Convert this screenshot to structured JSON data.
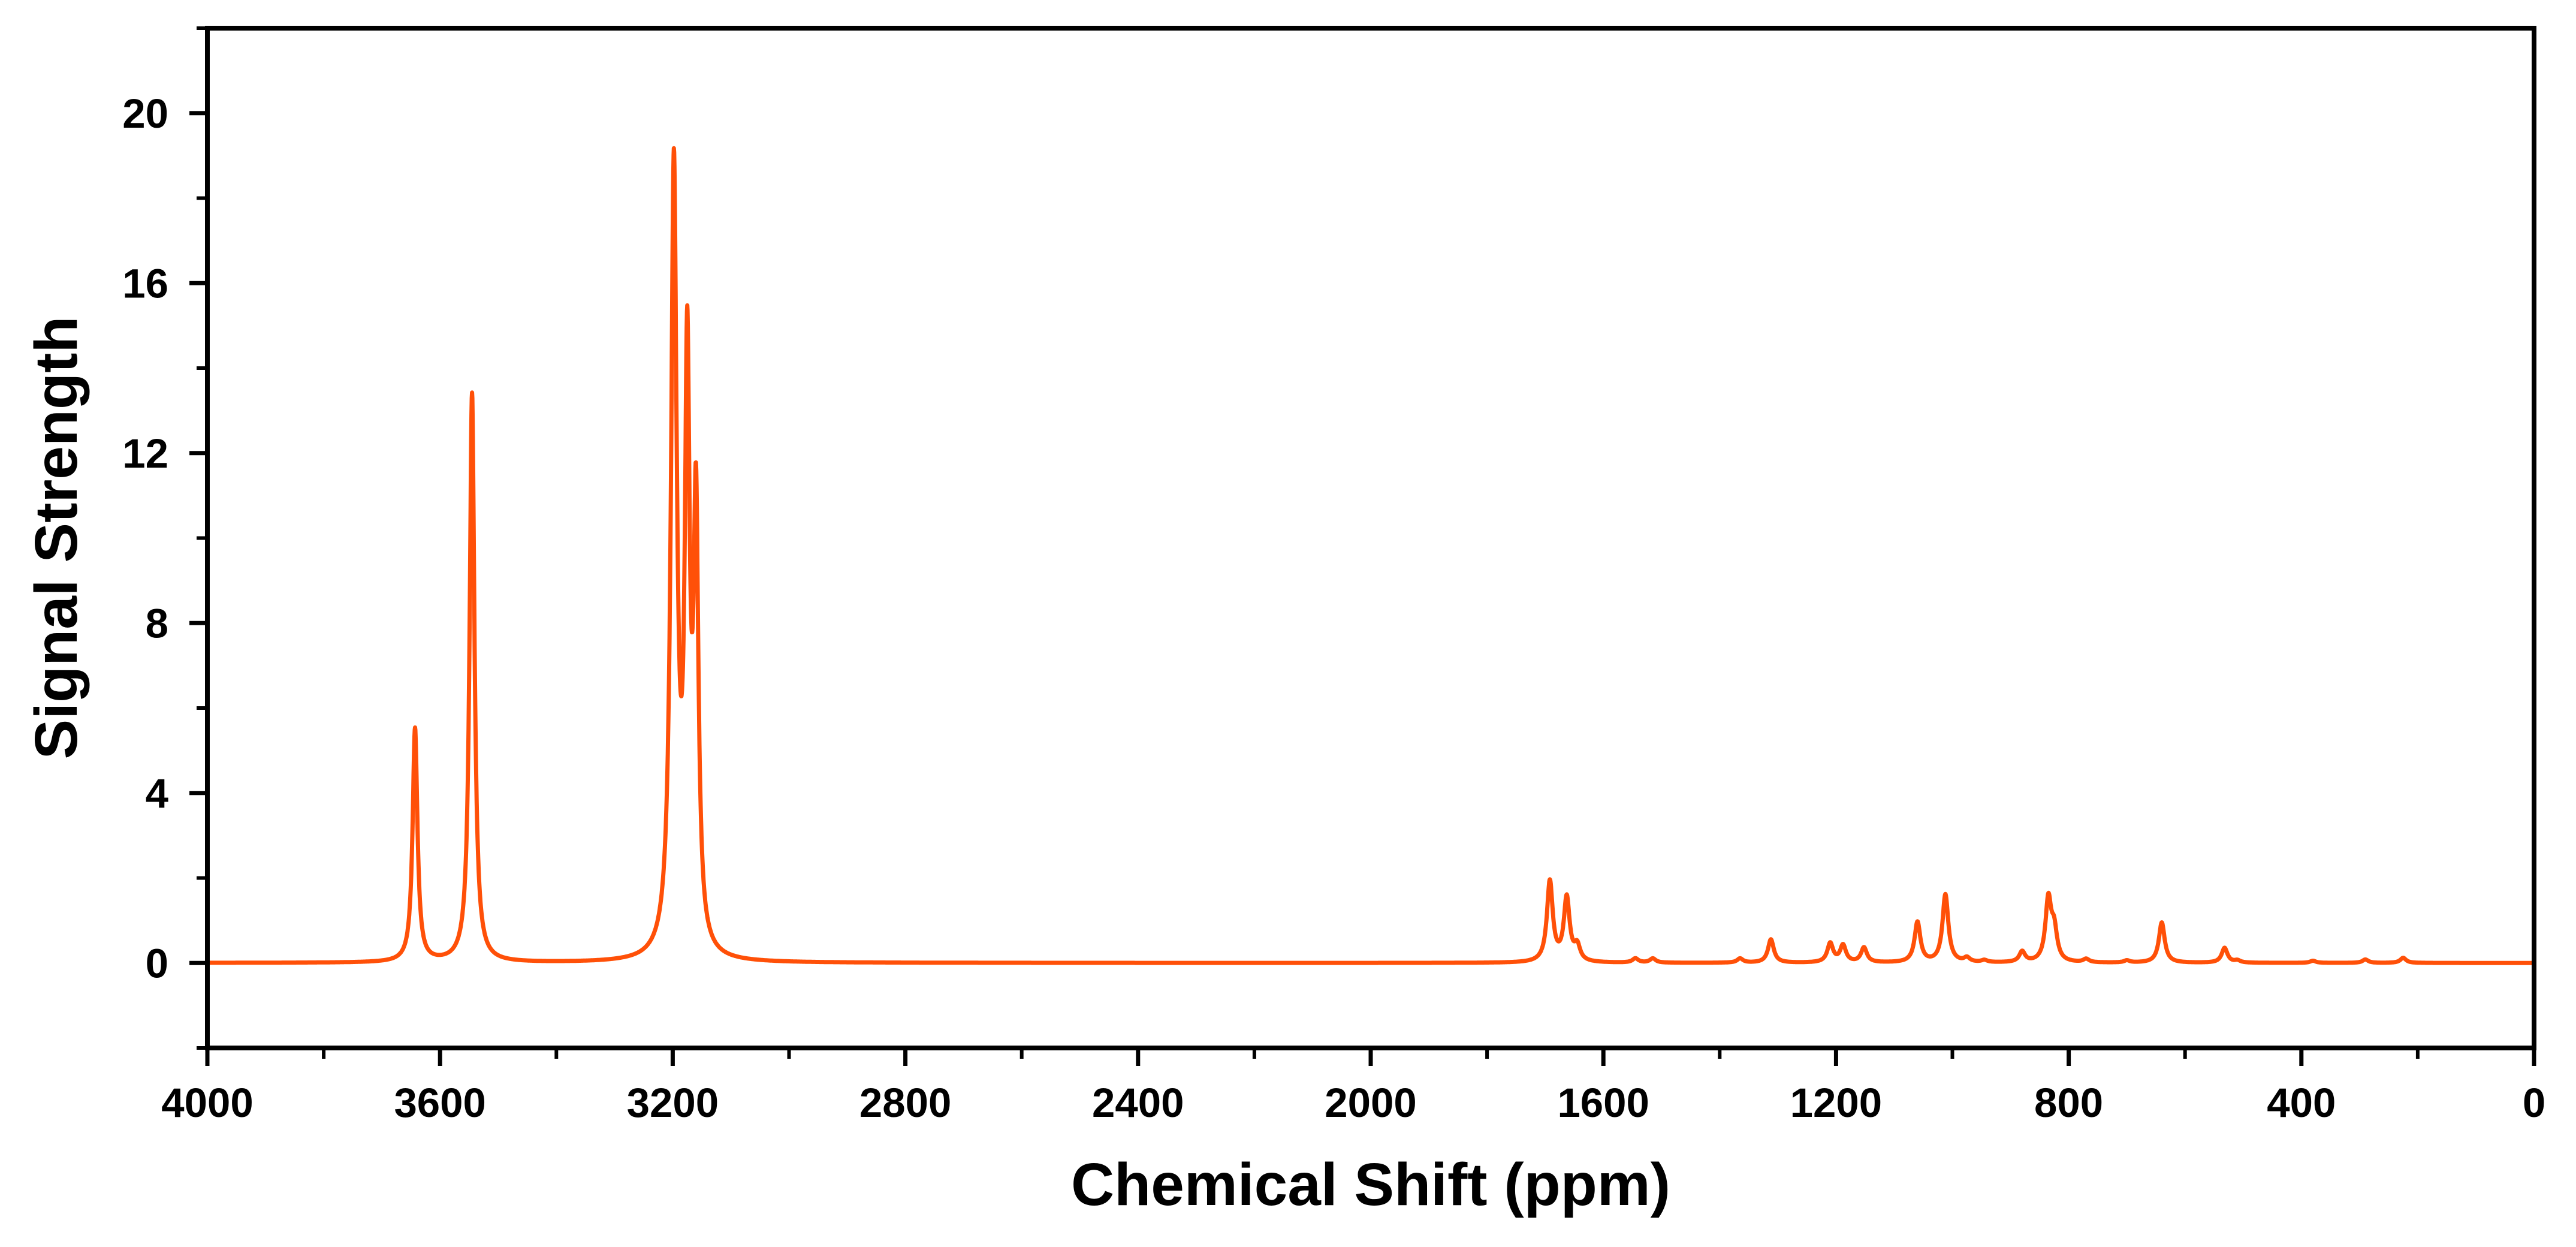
{
  "chart_data": {
    "type": "line",
    "title": "",
    "xlabel": "Chemical Shift (ppm)",
    "ylabel": "Signal Strength",
    "xlim": [
      4000,
      0
    ],
    "ylim": [
      -2,
      22
    ],
    "x_reversed": true,
    "x_ticks": [
      4000,
      3600,
      3200,
      2800,
      2400,
      2000,
      1600,
      1200,
      800,
      400,
      0
    ],
    "x_tick_labels": [
      "4000",
      "3600",
      "3200",
      "2800",
      "2400",
      "2000",
      "1600",
      "1200",
      "800",
      "400",
      "0"
    ],
    "y_ticks": [
      0,
      4,
      8,
      12,
      16,
      20
    ],
    "y_tick_labels": [
      "0",
      "4",
      "8",
      "12",
      "16",
      "20"
    ],
    "grid": false,
    "legend": "none",
    "line_color": "#ff5008",
    "baseline": 0.0,
    "series": [
      {
        "peaks": [
          {
            "x": 3643,
            "height": 5.5,
            "width": 5
          },
          {
            "x": 3545,
            "height": 13.4,
            "width": 5
          },
          {
            "x": 3198,
            "height": 18.4,
            "width": 6
          },
          {
            "x": 3175,
            "height": 13.3,
            "width": 5
          },
          {
            "x": 3160,
            "height": 10.0,
            "width": 5
          },
          {
            "x": 1692,
            "height": 1.9,
            "width": 6
          },
          {
            "x": 1663,
            "height": 1.5,
            "width": 6
          },
          {
            "x": 1645,
            "height": 0.35,
            "width": 6
          },
          {
            "x": 1545,
            "height": 0.1,
            "width": 6
          },
          {
            "x": 1515,
            "height": 0.1,
            "width": 6
          },
          {
            "x": 1365,
            "height": 0.1,
            "width": 6
          },
          {
            "x": 1312,
            "height": 0.55,
            "width": 6
          },
          {
            "x": 1210,
            "height": 0.45,
            "width": 6
          },
          {
            "x": 1188,
            "height": 0.4,
            "width": 6
          },
          {
            "x": 1152,
            "height": 0.35,
            "width": 6
          },
          {
            "x": 1060,
            "height": 0.95,
            "width": 6
          },
          {
            "x": 1012,
            "height": 1.6,
            "width": 6
          },
          {
            "x": 975,
            "height": 0.1,
            "width": 6
          },
          {
            "x": 945,
            "height": 0.05,
            "width": 6
          },
          {
            "x": 880,
            "height": 0.25,
            "width": 6
          },
          {
            "x": 835,
            "height": 1.45,
            "width": 6
          },
          {
            "x": 825,
            "height": 0.7,
            "width": 6
          },
          {
            "x": 770,
            "height": 0.08,
            "width": 6
          },
          {
            "x": 700,
            "height": 0.05,
            "width": 6
          },
          {
            "x": 640,
            "height": 0.95,
            "width": 6
          },
          {
            "x": 532,
            "height": 0.35,
            "width": 6
          },
          {
            "x": 510,
            "height": 0.05,
            "width": 6
          },
          {
            "x": 380,
            "height": 0.05,
            "width": 6
          },
          {
            "x": 290,
            "height": 0.08,
            "width": 6
          },
          {
            "x": 225,
            "height": 0.12,
            "width": 6
          }
        ]
      }
    ]
  }
}
